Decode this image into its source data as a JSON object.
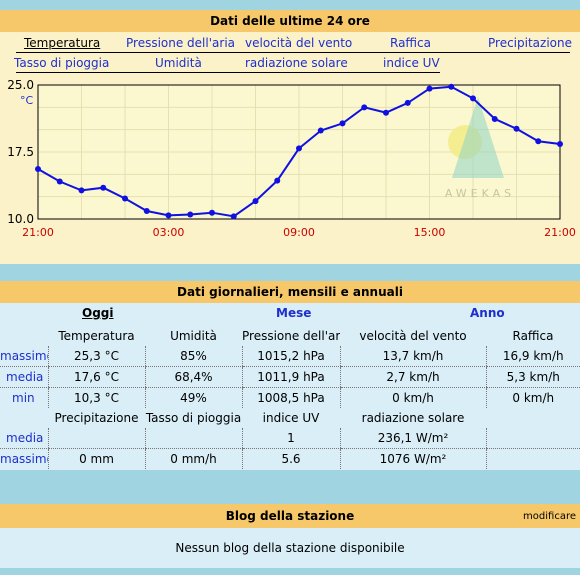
{
  "header1": "Dati delle ultime 24 ore",
  "tabs_row1": [
    "Temperatura",
    "Pressione dell'aria",
    "velocità del vento",
    "Raffica",
    "Precipitazione"
  ],
  "tabs_row2": [
    "Tasso di pioggia",
    "Umidità",
    "radiazione solare",
    "indice UV"
  ],
  "chart_data": {
    "type": "line",
    "unit": "°C",
    "yticks": [
      "25.0",
      "17.5",
      "10.0"
    ],
    "ylim": [
      10.0,
      25.0
    ],
    "xticks": [
      "21:00",
      "03:00",
      "09:00",
      "15:00",
      "21:00"
    ],
    "watermark": "AWEKAS",
    "series": [
      {
        "values": [
          15.6,
          14.2,
          13.2,
          13.5,
          12.3,
          10.9,
          10.4,
          10.5,
          10.7,
          10.3,
          12.0,
          14.3,
          17.9,
          19.9,
          20.7,
          22.5,
          21.9,
          23.0,
          24.6,
          24.8,
          23.5,
          21.2,
          20.1,
          18.7,
          18.4
        ],
        "color": "#1010e0"
      }
    ]
  },
  "header2": "Dati giornalieri, mensili e annuali",
  "periods": [
    "Oggi",
    "Mese",
    "Anno"
  ],
  "table1": {
    "columns": [
      "Temperatura",
      "Umidità",
      "Pressione dell'aria",
      "velocità del vento",
      "Raffica"
    ],
    "rows": [
      {
        "label": "massimo",
        "values": [
          "25,3 °C",
          "85%",
          "1015,2 hPa",
          "13,7 km/h",
          "16,9 km/h"
        ]
      },
      {
        "label": "media",
        "values": [
          "17,6 °C",
          "68,4%",
          "1011,9 hPa",
          "2,7 km/h",
          "5,3 km/h"
        ]
      },
      {
        "label": "min",
        "values": [
          "10,3 °C",
          "49%",
          "1008,5 hPa",
          "0 km/h",
          "0 km/h"
        ]
      }
    ]
  },
  "table2": {
    "columns": [
      "Precipitazione",
      "Tasso di pioggia",
      "indice UV",
      "radiazione solare",
      ""
    ],
    "rows": [
      {
        "label": "media",
        "values": [
          "",
          "",
          "1",
          "236,1 W/m²",
          ""
        ]
      },
      {
        "label": "massimo",
        "values": [
          "0 mm",
          "0 mm/h",
          "5.6",
          "1076 W/m²",
          ""
        ]
      }
    ]
  },
  "header3": "Blog della stazione",
  "edit_label": "modificare",
  "blog_empty": "Nessun blog della stazione disponibile",
  "colors": {
    "header": "#f7c869",
    "panel": "#fbf2c9",
    "table_bg": "#d9eef6",
    "page_bg": "#9fd4e0",
    "link": "#1f2fcc",
    "axis_red": "#cc0000"
  }
}
